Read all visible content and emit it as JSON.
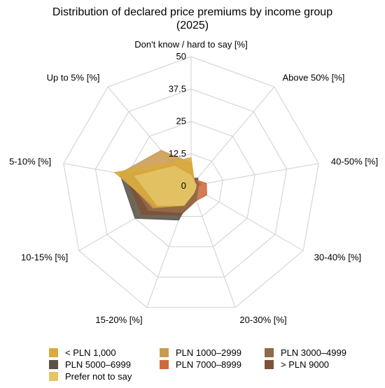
{
  "chart_data": {
    "type": "radar",
    "title": "Distribution of declared price premiums by income group (2025)",
    "axes": [
      "Don't know / hard to say [%]",
      "Above 50% [%]",
      "40-50% [%]",
      "30-40% [%]",
      "20-30% [%]",
      "15-20% [%]",
      "10-15% [%]",
      "5-10% [%]",
      "Up to 5% [%]"
    ],
    "rlim": [
      0,
      50
    ],
    "ticks": [
      0,
      12.5,
      25,
      37.5,
      50
    ],
    "tick_labels": [
      "0",
      "12.5",
      "25",
      "37.5",
      "50"
    ],
    "grid": true,
    "legend_position": "bottom",
    "series": [
      {
        "name": "PLN 5000–6999",
        "color": "#5a5245",
        "values": [
          3,
          4,
          3,
          2,
          3,
          14,
          25,
          28,
          9
        ]
      },
      {
        "name": "> PLN 9000",
        "color": "#7e5238",
        "values": [
          2,
          3,
          4,
          2,
          6,
          12,
          22,
          26,
          10
        ]
      },
      {
        "name": "PLN 7000–8999",
        "color": "#cd6a3d",
        "values": [
          2,
          3,
          6,
          7,
          6,
          11,
          18,
          27,
          9
        ]
      },
      {
        "name": "PLN 3000–4999",
        "color": "#8e6a48",
        "values": [
          4,
          3,
          3,
          3,
          6,
          11,
          19,
          25,
          11
        ]
      },
      {
        "name": "PLN 1000–2999",
        "color": "#c99b51",
        "values": [
          9,
          2,
          2,
          2,
          3,
          8,
          17,
          28,
          18
        ]
      },
      {
        "name": "< PLN 1,000",
        "color": "#d7ab3e",
        "values": [
          11,
          2,
          2,
          2,
          3,
          8,
          16,
          30,
          12
        ]
      },
      {
        "name": "Prefer not to say",
        "color": "#e3c468",
        "values": [
          4,
          2,
          2,
          2,
          3,
          8,
          15,
          22,
          10
        ]
      }
    ],
    "legend": [
      {
        "name": "< PLN 1,000",
        "color": "#d7ab3e"
      },
      {
        "name": "PLN 1000–2999",
        "color": "#c99b51"
      },
      {
        "name": "PLN 3000–4999",
        "color": "#8e6a48"
      },
      {
        "name": "PLN 5000–6999",
        "color": "#5a5245"
      },
      {
        "name": "PLN 7000–8999",
        "color": "#cd6a3d"
      },
      {
        "name": "> PLN 9000",
        "color": "#7e5238"
      },
      {
        "name": "Prefer not to say",
        "color": "#e3c468"
      }
    ]
  }
}
